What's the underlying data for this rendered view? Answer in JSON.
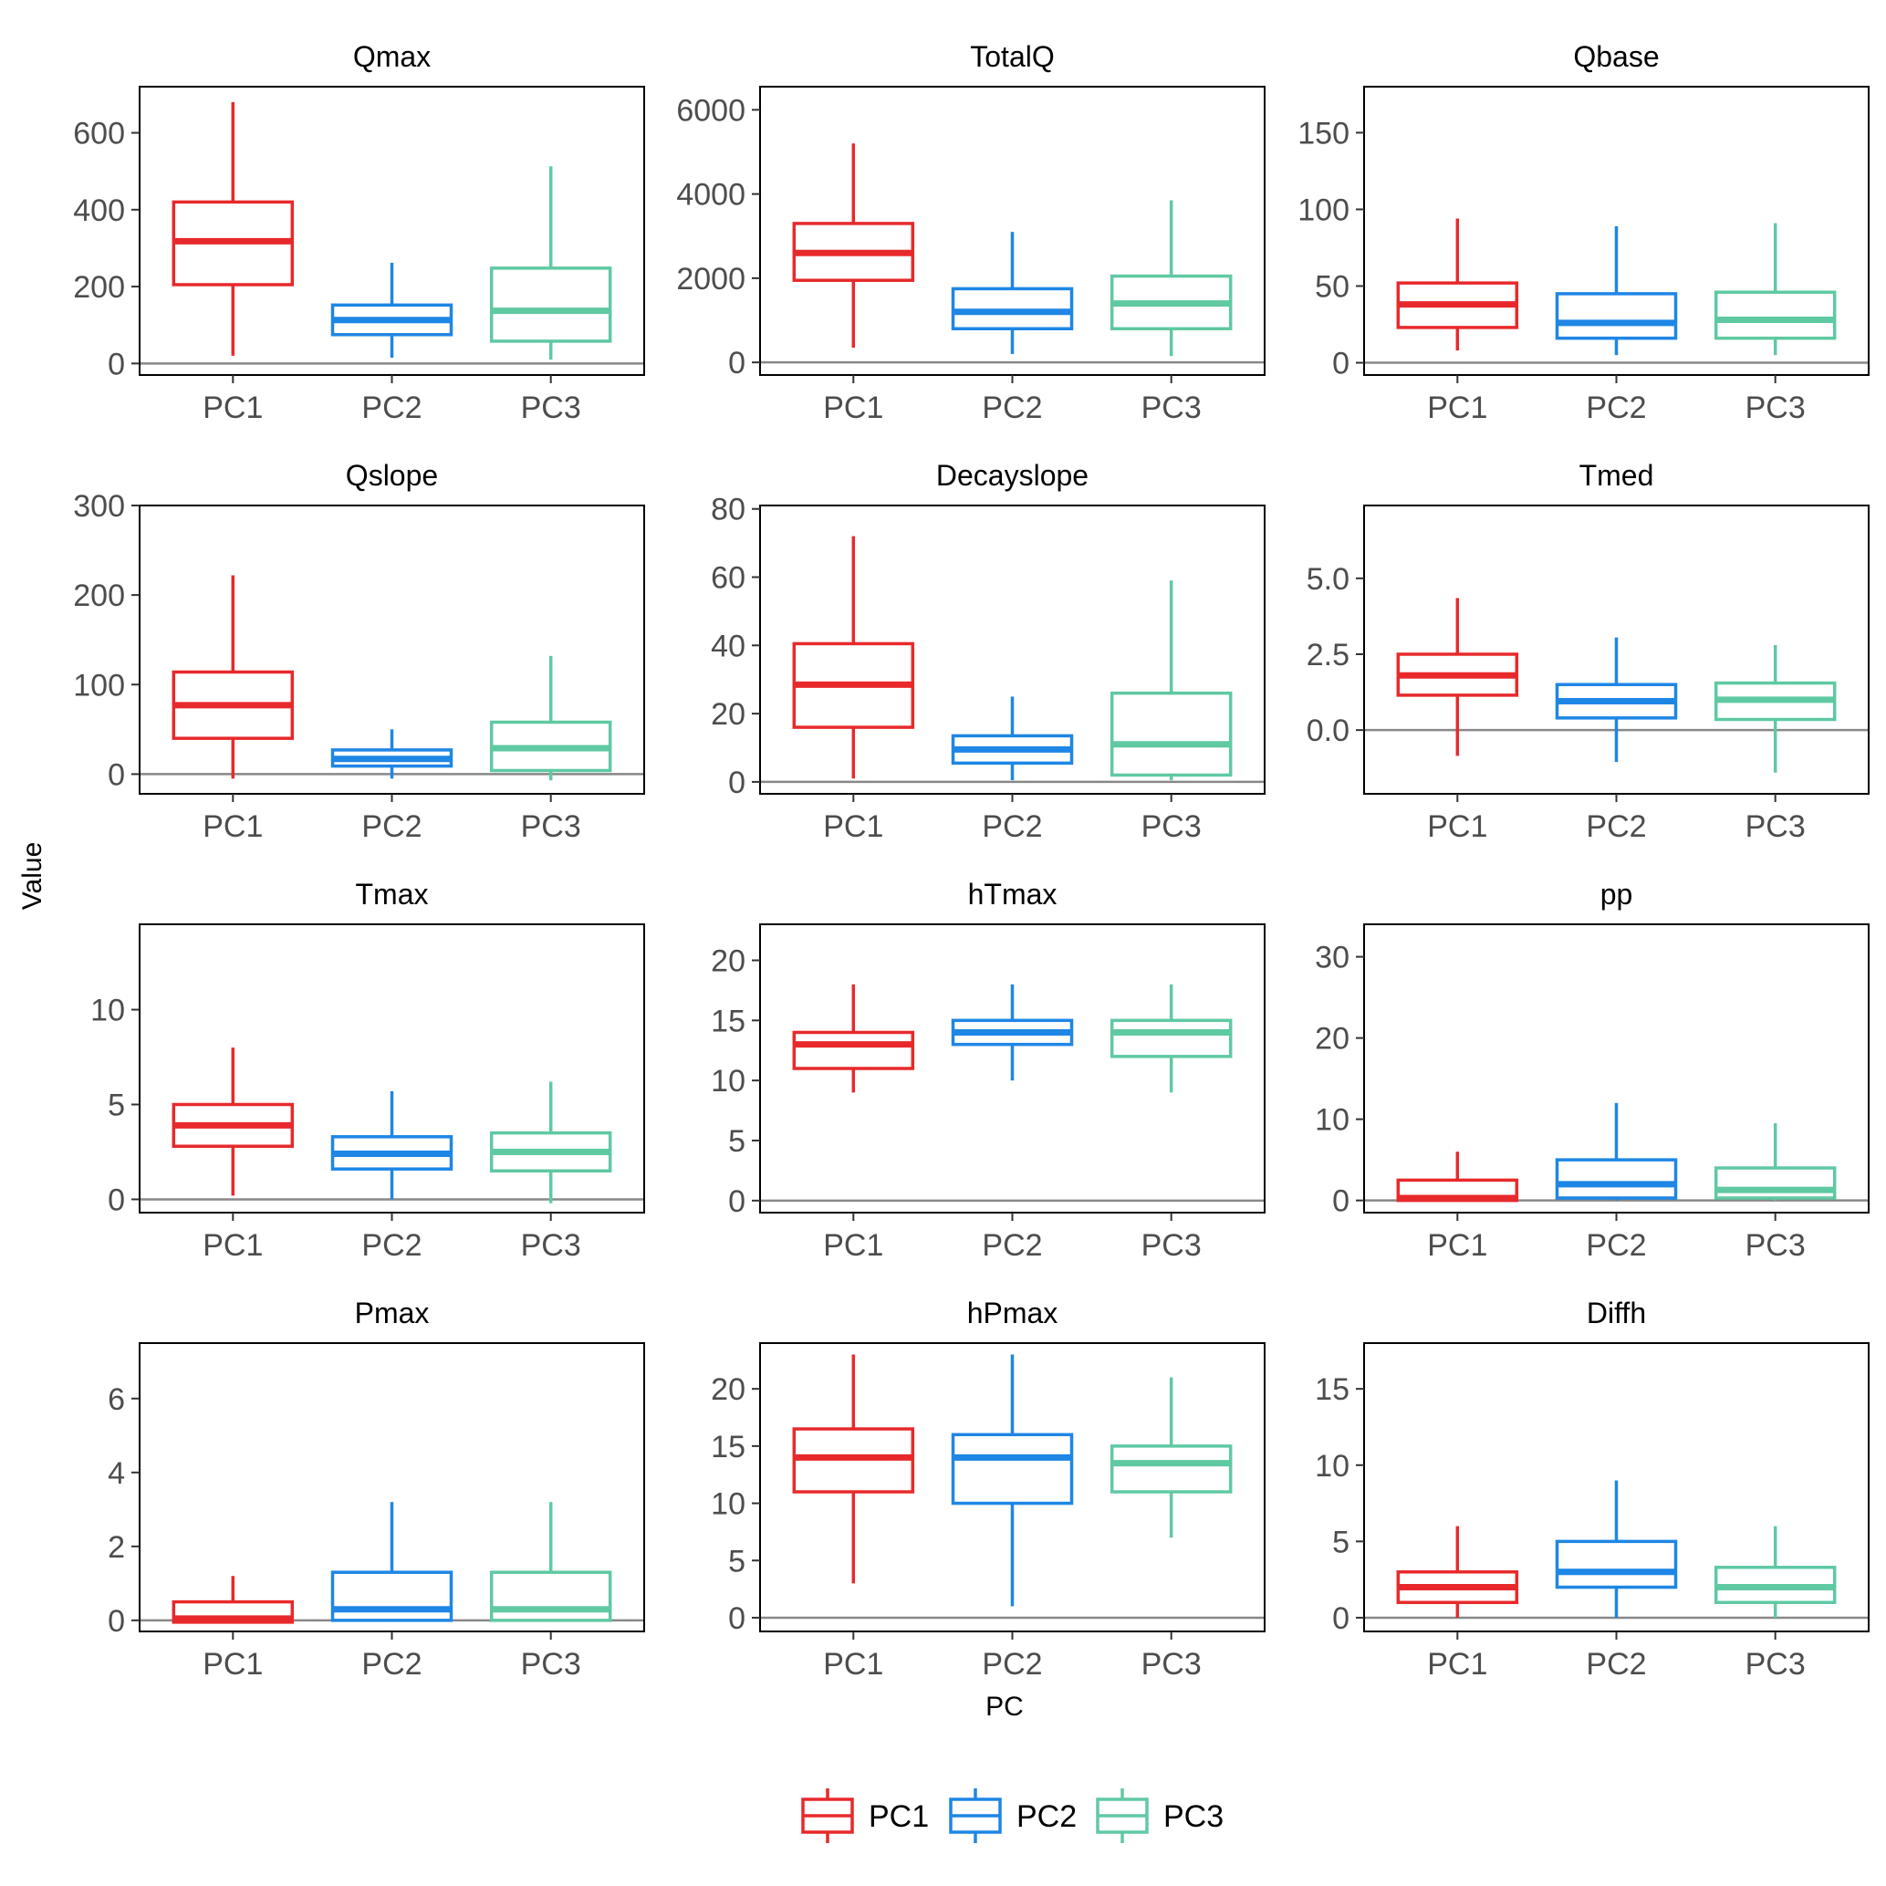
{
  "colors": {
    "PC1": "#e8292b",
    "PC2": "#1e86e5",
    "PC3": "#5fc9a2",
    "zero_line": "#888888",
    "frame": "#000000"
  },
  "chart_data": {
    "type": "boxplot",
    "xlabel": "PC",
    "ylabel": "Value",
    "categories": [
      "PC1",
      "PC2",
      "PC3"
    ],
    "legend": {
      "position": "bottom",
      "entries": [
        "PC1",
        "PC2",
        "PC3"
      ]
    },
    "panels": [
      {
        "title": "Qmax",
        "ylim": [
          -30,
          720
        ],
        "yticks": [
          0,
          200,
          400,
          600
        ],
        "ytick_labels": [
          "0",
          "200",
          "400",
          "600"
        ],
        "boxes": [
          {
            "group": "PC1",
            "min": 20,
            "q1": 205,
            "median": 318,
            "q3": 420,
            "max": 680
          },
          {
            "group": "PC2",
            "min": 15,
            "q1": 75,
            "median": 113,
            "q3": 152,
            "max": 262
          },
          {
            "group": "PC3",
            "min": 10,
            "q1": 58,
            "median": 137,
            "q3": 248,
            "max": 513
          }
        ]
      },
      {
        "title": "TotalQ",
        "ylim": [
          -300,
          6550
        ],
        "yticks": [
          0,
          2000,
          4000,
          6000
        ],
        "ytick_labels": [
          "0",
          "2000",
          "4000",
          "6000"
        ],
        "boxes": [
          {
            "group": "PC1",
            "min": 350,
            "q1": 1950,
            "median": 2600,
            "q3": 3300,
            "max": 5200
          },
          {
            "group": "PC2",
            "min": 200,
            "q1": 800,
            "median": 1200,
            "q3": 1750,
            "max": 3100
          },
          {
            "group": "PC3",
            "min": 150,
            "q1": 800,
            "median": 1400,
            "q3": 2050,
            "max": 3850
          }
        ]
      },
      {
        "title": "Qbase",
        "ylim": [
          -8,
          180
        ],
        "yticks": [
          0,
          50,
          100,
          150
        ],
        "ytick_labels": [
          "0",
          "50",
          "100",
          "150"
        ],
        "boxes": [
          {
            "group": "PC1",
            "min": 8,
            "q1": 23,
            "median": 38,
            "q3": 52,
            "max": 94
          },
          {
            "group": "PC2",
            "min": 5,
            "q1": 16,
            "median": 26,
            "q3": 45,
            "max": 89
          },
          {
            "group": "PC3",
            "min": 5,
            "q1": 16,
            "median": 28,
            "q3": 46,
            "max": 91
          }
        ]
      },
      {
        "title": "Qslope",
        "ylim": [
          -22,
          300
        ],
        "yticks": [
          0,
          100,
          200,
          300
        ],
        "ytick_labels": [
          "0",
          "100",
          "200",
          "300"
        ],
        "boxes": [
          {
            "group": "PC1",
            "min": -5,
            "q1": 40,
            "median": 77,
            "q3": 114,
            "max": 222
          },
          {
            "group": "PC2",
            "min": -5,
            "q1": 9,
            "median": 17,
            "q3": 27,
            "max": 50
          },
          {
            "group": "PC3",
            "min": -7,
            "q1": 4,
            "median": 29,
            "q3": 58,
            "max": 132
          }
        ]
      },
      {
        "title": "Decayslope",
        "ylim": [
          -3.5,
          81
        ],
        "yticks": [
          0,
          20,
          40,
          60,
          80
        ],
        "ytick_labels": [
          "0",
          "20",
          "40",
          "60",
          "80"
        ],
        "boxes": [
          {
            "group": "PC1",
            "min": 1,
            "q1": 16,
            "median": 28.5,
            "q3": 40.5,
            "max": 72
          },
          {
            "group": "PC2",
            "min": 0.5,
            "q1": 5.5,
            "median": 9.5,
            "q3": 13.5,
            "max": 25
          },
          {
            "group": "PC3",
            "min": 0.5,
            "q1": 2,
            "median": 11,
            "q3": 26,
            "max": 59
          }
        ]
      },
      {
        "title": "Tmed",
        "ylim": [
          -2.1,
          7.4
        ],
        "yticks": [
          0.0,
          2.5,
          5.0
        ],
        "ytick_labels": [
          "0.0",
          "2.5",
          "5.0"
        ],
        "boxes": [
          {
            "group": "PC1",
            "min": -0.85,
            "q1": 1.15,
            "median": 1.8,
            "q3": 2.5,
            "max": 4.35
          },
          {
            "group": "PC2",
            "min": -1.05,
            "q1": 0.4,
            "median": 0.95,
            "q3": 1.5,
            "max": 3.05
          },
          {
            "group": "PC3",
            "min": -1.4,
            "q1": 0.35,
            "median": 1.0,
            "q3": 1.55,
            "max": 2.8
          }
        ]
      },
      {
        "title": "Tmax",
        "ylim": [
          -0.7,
          14.5
        ],
        "yticks": [
          0,
          5,
          10
        ],
        "ytick_labels": [
          "0",
          "5",
          "10"
        ],
        "boxes": [
          {
            "group": "PC1",
            "min": 0.2,
            "q1": 2.8,
            "median": 3.9,
            "q3": 5.0,
            "max": 8.0
          },
          {
            "group": "PC2",
            "min": 0.0,
            "q1": 1.6,
            "median": 2.4,
            "q3": 3.3,
            "max": 5.7
          },
          {
            "group": "PC3",
            "min": -0.2,
            "q1": 1.5,
            "median": 2.5,
            "q3": 3.5,
            "max": 6.2
          }
        ]
      },
      {
        "title": "hTmax",
        "ylim": [
          -1,
          23
        ],
        "yticks": [
          0,
          5,
          10,
          15,
          20
        ],
        "ytick_labels": [
          "0",
          "5",
          "10",
          "15",
          "20"
        ],
        "boxes": [
          {
            "group": "PC1",
            "min": 9,
            "q1": 11,
            "median": 13,
            "q3": 14,
            "max": 18
          },
          {
            "group": "PC2",
            "min": 10,
            "q1": 13,
            "median": 14,
            "q3": 15,
            "max": 18
          },
          {
            "group": "PC3",
            "min": 9,
            "q1": 12,
            "median": 14,
            "q3": 15,
            "max": 18
          }
        ]
      },
      {
        "title": "pp",
        "ylim": [
          -1.5,
          34
        ],
        "yticks": [
          0,
          10,
          20,
          30
        ],
        "ytick_labels": [
          "0",
          "10",
          "20",
          "30"
        ],
        "boxes": [
          {
            "group": "PC1",
            "min": 0,
            "q1": 0,
            "median": 0.3,
            "q3": 2.5,
            "max": 6
          },
          {
            "group": "PC2",
            "min": 0,
            "q1": 0.3,
            "median": 2,
            "q3": 5,
            "max": 12
          },
          {
            "group": "PC3",
            "min": 0,
            "q1": 0.3,
            "median": 1.3,
            "q3": 4,
            "max": 9.5
          }
        ]
      },
      {
        "title": "Pmax",
        "ylim": [
          -0.3,
          7.5
        ],
        "yticks": [
          0,
          2,
          4,
          6
        ],
        "ytick_labels": [
          "0",
          "2",
          "4",
          "6"
        ],
        "boxes": [
          {
            "group": "PC1",
            "min": -0.05,
            "q1": -0.05,
            "median": 0.05,
            "q3": 0.5,
            "max": 1.2
          },
          {
            "group": "PC2",
            "min": 0.0,
            "q1": 0.0,
            "median": 0.3,
            "q3": 1.3,
            "max": 3.2
          },
          {
            "group": "PC3",
            "min": 0.0,
            "q1": 0.0,
            "median": 0.3,
            "q3": 1.3,
            "max": 3.2
          }
        ]
      },
      {
        "title": "hPmax",
        "ylim": [
          -1.2,
          24
        ],
        "yticks": [
          0,
          5,
          10,
          15,
          20
        ],
        "ytick_labels": [
          "0",
          "5",
          "10",
          "15",
          "20"
        ],
        "boxes": [
          {
            "group": "PC1",
            "min": 3,
            "q1": 11,
            "median": 14,
            "q3": 16.5,
            "max": 23
          },
          {
            "group": "PC2",
            "min": 1,
            "q1": 10,
            "median": 14,
            "q3": 16,
            "max": 23
          },
          {
            "group": "PC3",
            "min": 7,
            "q1": 11,
            "median": 13.5,
            "q3": 15,
            "max": 21
          }
        ]
      },
      {
        "title": "Diffh",
        "ylim": [
          -0.9,
          18
        ],
        "yticks": [
          0,
          5,
          10,
          15
        ],
        "ytick_labels": [
          "0",
          "5",
          "10",
          "15"
        ],
        "boxes": [
          {
            "group": "PC1",
            "min": 0,
            "q1": 1,
            "median": 2,
            "q3": 3,
            "max": 6
          },
          {
            "group": "PC2",
            "min": 0,
            "q1": 2,
            "median": 3,
            "q3": 5,
            "max": 9
          },
          {
            "group": "PC3",
            "min": 0,
            "q1": 1,
            "median": 2,
            "q3": 3.3,
            "max": 6
          }
        ]
      }
    ]
  }
}
